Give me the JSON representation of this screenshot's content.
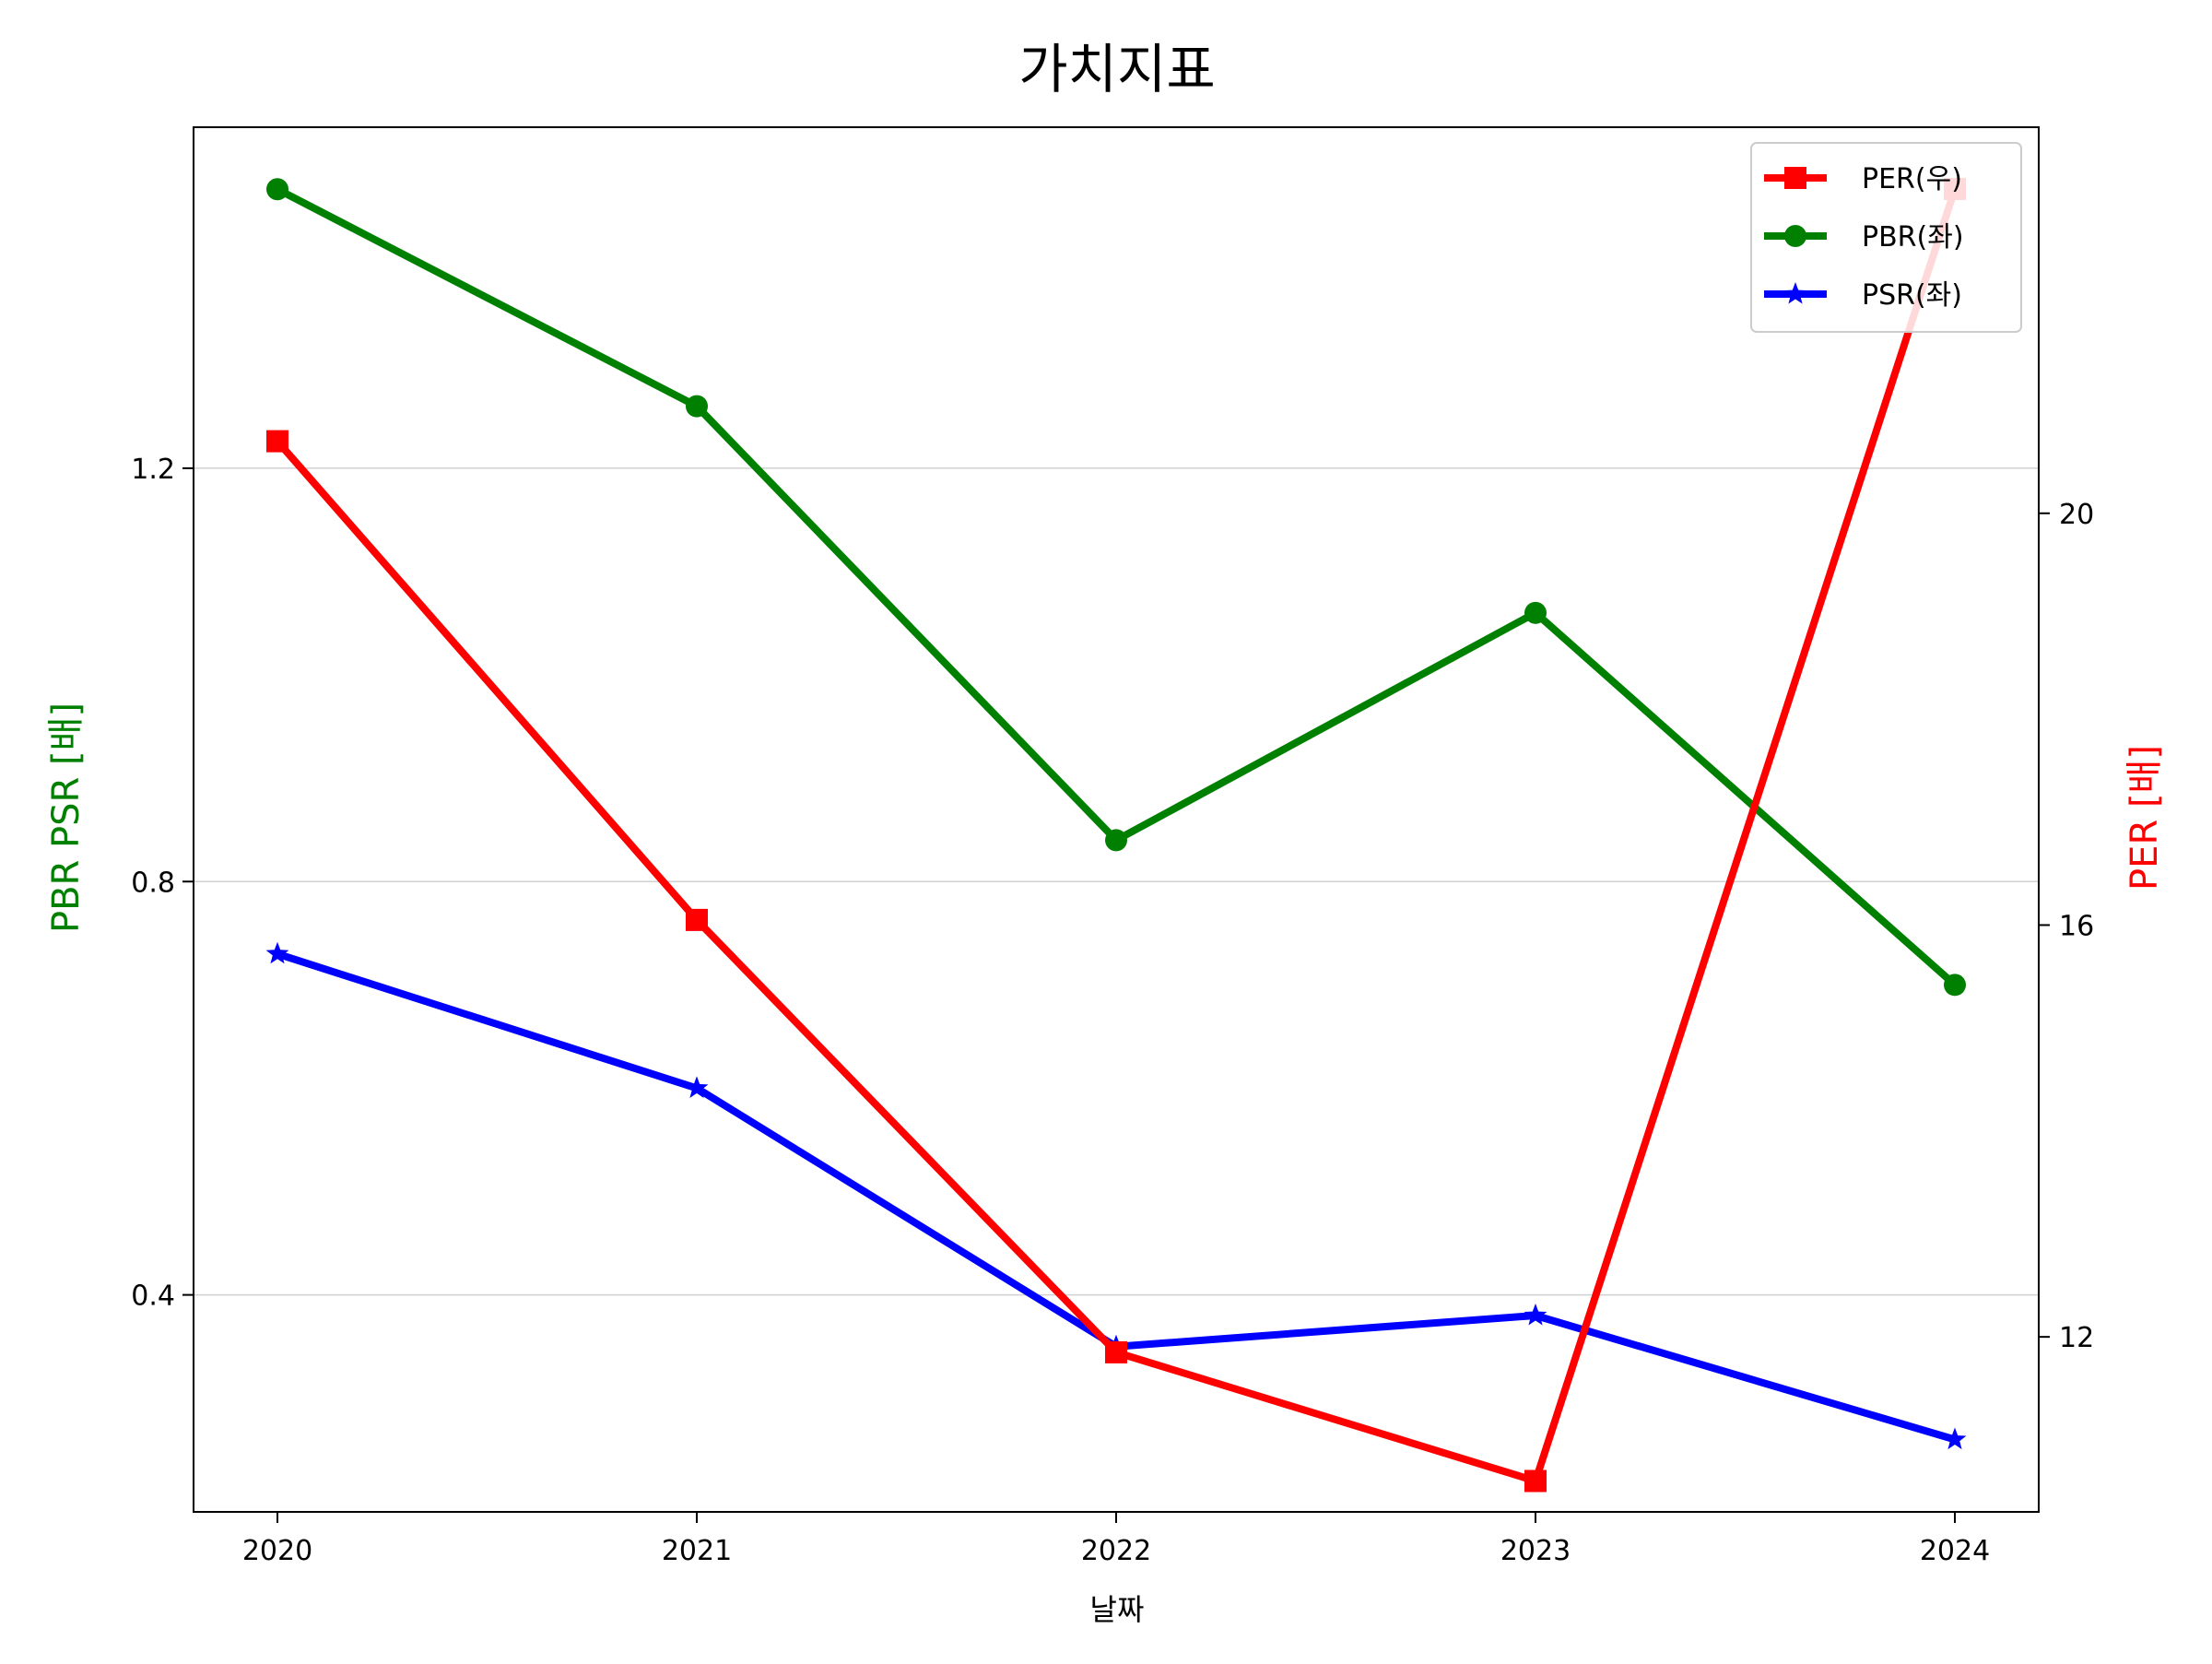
{
  "chart_data": {
    "type": "line",
    "title": "가치지표",
    "xlabel": "날짜",
    "ylabel_left": "PBR PSR [배]",
    "ylabel_right": "PER [배]",
    "x": [
      2020,
      2021,
      2022,
      2023,
      2024
    ],
    "x_tick_labels": [
      "2020",
      "2021",
      "2022",
      "2023",
      "2024"
    ],
    "xlim": [
      2019.8,
      2024.2
    ],
    "y_left_ticks": [
      0.4,
      0.8,
      1.2
    ],
    "y_left_tick_labels": [
      "0.4",
      "0.8",
      "1.2"
    ],
    "ylim_left": [
      0.19,
      1.53
    ],
    "y_right_ticks": [
      12,
      16,
      20
    ],
    "y_right_tick_labels": [
      "12",
      "16",
      "20"
    ],
    "ylim_right": [
      10.3,
      23.75
    ],
    "grid": "horizontal (left axis)",
    "legend_position": "top-right",
    "series": [
      {
        "name": "PER(우)",
        "axis": "right",
        "color": "#ff0000",
        "marker": "square",
        "values": [
          20.7,
          16.05,
          11.85,
          10.6,
          23.15
        ]
      },
      {
        "name": "PBR(좌)",
        "axis": "left",
        "color": "#008000",
        "marker": "circle",
        "values": [
          1.47,
          1.26,
          0.84,
          1.06,
          0.7
        ]
      },
      {
        "name": "PSR(좌)",
        "axis": "left",
        "color": "#0000ff",
        "marker": "star",
        "values": [
          0.73,
          0.6,
          0.35,
          0.38,
          0.26
        ]
      }
    ]
  }
}
